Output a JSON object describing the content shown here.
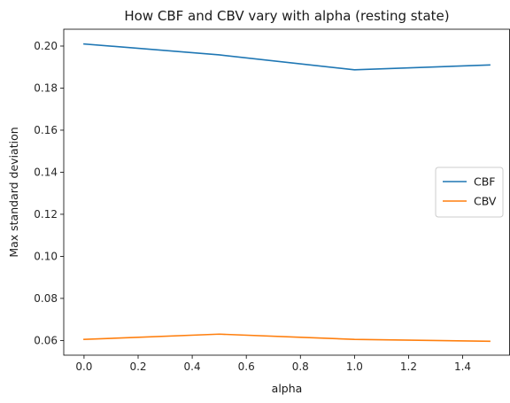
{
  "chart_data": {
    "type": "line",
    "title": "How CBF and CBV vary with alpha (resting state)",
    "xlabel": "alpha",
    "ylabel": "Max standard deviation",
    "xlim": [
      -0.075,
      1.575
    ],
    "ylim": [
      0.053,
      0.208
    ],
    "xticks": [
      0.0,
      0.2,
      0.4,
      0.6,
      0.8,
      1.0,
      1.2,
      1.4
    ],
    "xtick_labels": [
      "0.0",
      "0.2",
      "0.4",
      "0.6",
      "0.8",
      "1.0",
      "1.2",
      "1.4"
    ],
    "yticks": [
      0.06,
      0.08,
      0.1,
      0.12,
      0.14,
      0.16,
      0.18,
      0.2
    ],
    "ytick_labels": [
      "0.06",
      "0.08",
      "0.10",
      "0.12",
      "0.14",
      "0.16",
      "0.18",
      "0.20"
    ],
    "x": [
      0.0,
      0.5,
      1.0,
      1.5
    ],
    "series": [
      {
        "name": "CBF",
        "color": "#1f77b4",
        "values": [
          0.201,
          0.1958,
          0.1887,
          0.191
        ]
      },
      {
        "name": "CBV",
        "color": "#ff7f0e",
        "values": [
          0.0605,
          0.063,
          0.0605,
          0.0596
        ]
      }
    ],
    "legend_position": "center-right",
    "grid": false
  }
}
